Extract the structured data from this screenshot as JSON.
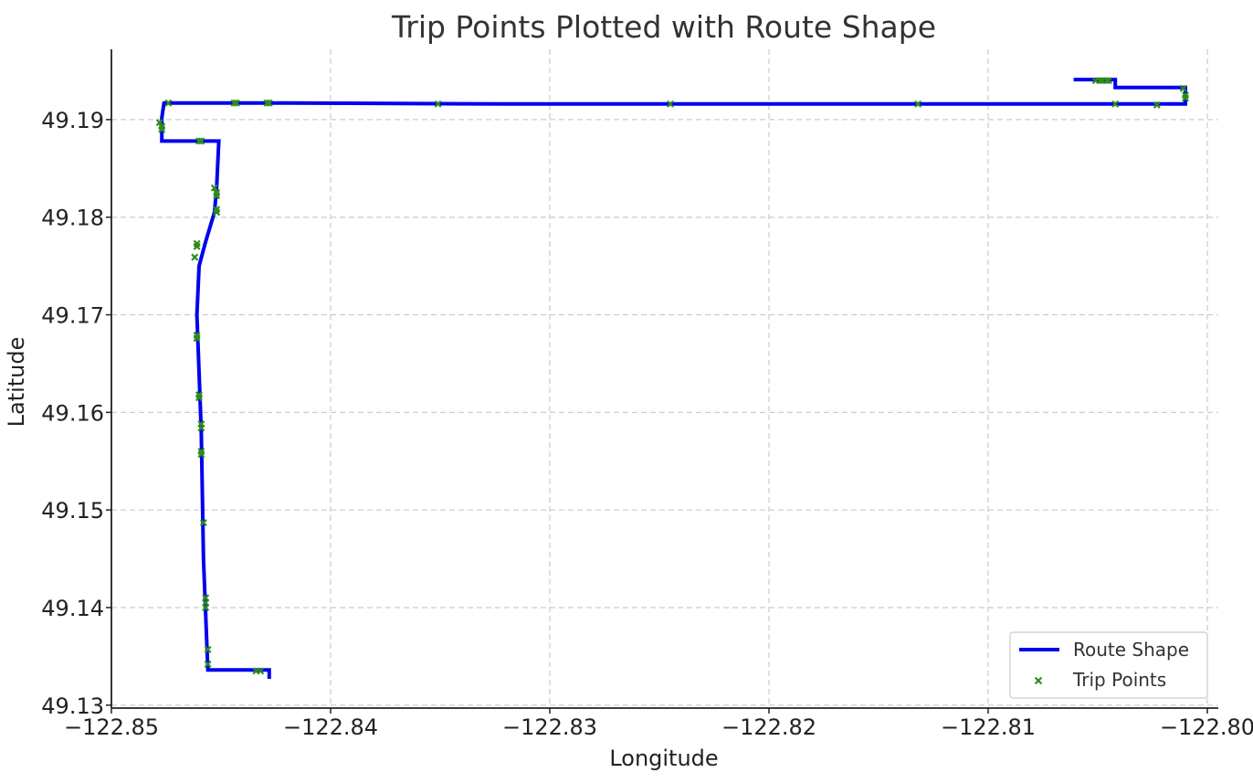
{
  "chart_data": {
    "type": "line",
    "title": "Trip Points Plotted with Route Shape",
    "xlabel": "Longitude",
    "ylabel": "Latitude",
    "xlim": [
      -122.85,
      -122.7995
    ],
    "ylim": [
      49.1297,
      49.1972
    ],
    "xticks": [
      -122.85,
      -122.84,
      -122.83,
      -122.82,
      -122.81,
      -122.8
    ],
    "xtick_labels": [
      "−122.85",
      "−122.84",
      "−122.83",
      "−122.82",
      "−122.81",
      "−122.80"
    ],
    "yticks": [
      49.13,
      49.14,
      49.15,
      49.16,
      49.17,
      49.18,
      49.19
    ],
    "ytick_labels": [
      "49.13",
      "49.14",
      "49.15",
      "49.16",
      "49.17",
      "49.18",
      "49.19"
    ],
    "grid": true,
    "legend_position": "bottom-right",
    "series": [
      {
        "name": "Route Shape",
        "kind": "line",
        "color": "#0000ee",
        "points": [
          [
            -122.8428,
            49.1327
          ],
          [
            -122.8428,
            49.1336
          ],
          [
            -122.8456,
            49.1336
          ],
          [
            -122.8458,
            49.145
          ],
          [
            -122.8459,
            49.158
          ],
          [
            -122.8461,
            49.17
          ],
          [
            -122.846,
            49.175
          ],
          [
            -122.8457,
            49.1775
          ],
          [
            -122.8453,
            49.1805
          ],
          [
            -122.8452,
            49.183
          ],
          [
            -122.8451,
            49.1878
          ],
          [
            -122.8477,
            49.1878
          ],
          [
            -122.8477,
            49.1902
          ],
          [
            -122.8476,
            49.1917
          ],
          [
            -122.842,
            49.1917
          ],
          [
            -122.832,
            49.1916
          ],
          [
            -122.817,
            49.1916
          ],
          [
            -122.801,
            49.1916
          ],
          [
            -122.801,
            49.1933
          ],
          [
            -122.8042,
            49.1933
          ],
          [
            -122.8042,
            49.1941
          ],
          [
            -122.8061,
            49.1941
          ]
        ]
      },
      {
        "name": "Trip Points",
        "kind": "scatter",
        "color": "#2e8b1e",
        "points": [
          [
            -122.8434,
            49.1335
          ],
          [
            -122.8432,
            49.1335
          ],
          [
            -122.8456,
            49.1342
          ],
          [
            -122.8456,
            49.1357
          ],
          [
            -122.8457,
            49.14
          ],
          [
            -122.8457,
            49.1405
          ],
          [
            -122.8457,
            49.141
          ],
          [
            -122.8458,
            49.1487
          ],
          [
            -122.8459,
            49.1557
          ],
          [
            -122.8459,
            49.156
          ],
          [
            -122.8459,
            49.1584
          ],
          [
            -122.8459,
            49.1588
          ],
          [
            -122.846,
            49.1615
          ],
          [
            -122.846,
            49.1618
          ],
          [
            -122.8461,
            49.1676
          ],
          [
            -122.8461,
            49.1679
          ],
          [
            -122.8462,
            49.1759
          ],
          [
            -122.8461,
            49.177
          ],
          [
            -122.8461,
            49.1773
          ],
          [
            -122.8452,
            49.1805
          ],
          [
            -122.8452,
            49.1808
          ],
          [
            -122.8452,
            49.1822
          ],
          [
            -122.8452,
            49.1825
          ],
          [
            -122.8453,
            49.183
          ],
          [
            -122.8459,
            49.1878
          ],
          [
            -122.846,
            49.1878
          ],
          [
            -122.8477,
            49.189
          ],
          [
            -122.8477,
            49.1893
          ],
          [
            -122.8478,
            49.1897
          ],
          [
            -122.8474,
            49.1917
          ],
          [
            -122.8444,
            49.1917
          ],
          [
            -122.8443,
            49.1917
          ],
          [
            -122.8429,
            49.1917
          ],
          [
            -122.8428,
            49.1917
          ],
          [
            -122.8351,
            49.1916
          ],
          [
            -122.8245,
            49.1916
          ],
          [
            -122.8132,
            49.1916
          ],
          [
            -122.8051,
            49.194
          ],
          [
            -122.8049,
            49.194
          ],
          [
            -122.8048,
            49.194
          ],
          [
            -122.8046,
            49.194
          ],
          [
            -122.8045,
            49.194
          ],
          [
            -122.8042,
            49.1916
          ],
          [
            -122.8023,
            49.1915
          ],
          [
            -122.8011,
            49.1932
          ],
          [
            -122.801,
            49.1925
          ],
          [
            -122.801,
            49.1922
          ]
        ]
      }
    ]
  }
}
